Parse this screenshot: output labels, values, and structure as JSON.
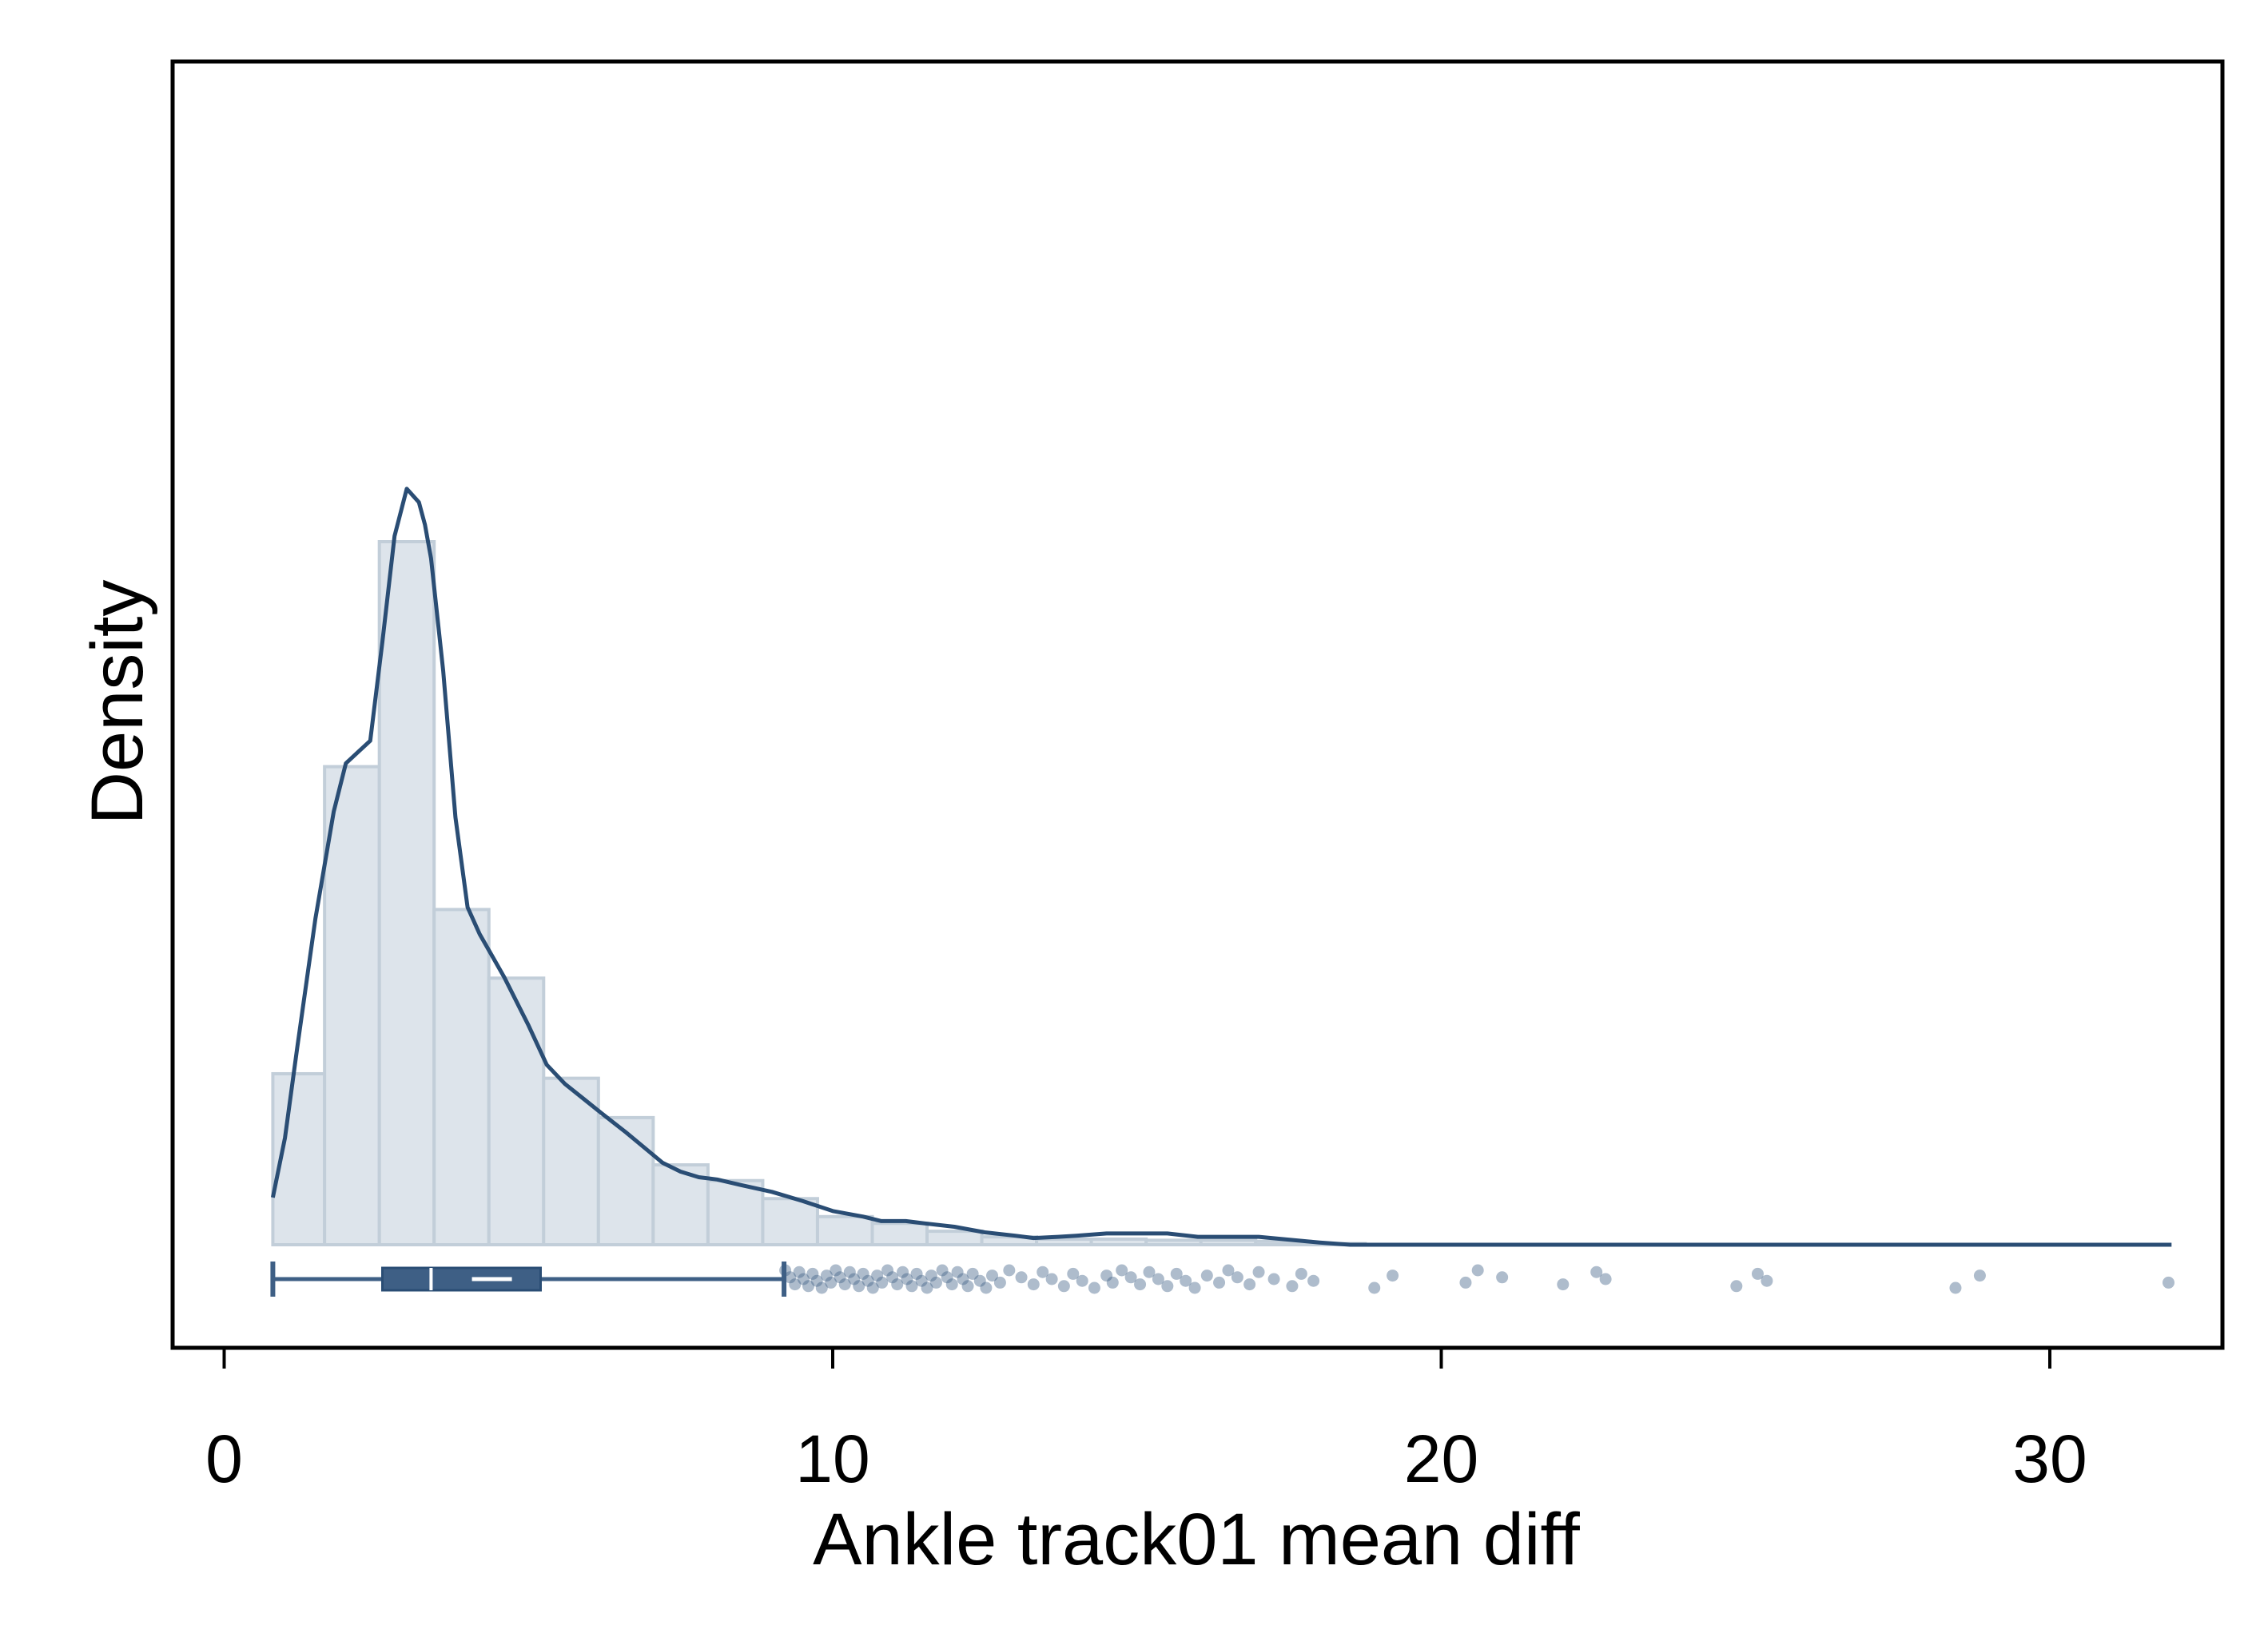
{
  "chart_data": {
    "type": "histogram",
    "xlabel": "Ankle track01 mean diff",
    "ylabel": "Density",
    "xlim": [
      -0.8,
      32.6
    ],
    "x_ticks": [
      0,
      10,
      20,
      30
    ],
    "x_tick_labels": [
      "0",
      "10",
      "20",
      "30"
    ],
    "y_ticks": [],
    "grid": false,
    "legend": "none",
    "histogram": {
      "bins": [
        {
          "x0": 0.8,
          "x1": 1.65,
          "density": 0.152
        },
        {
          "x0": 1.65,
          "x1": 2.55,
          "density": 0.425
        },
        {
          "x0": 2.55,
          "x1": 3.45,
          "density": 0.625
        },
        {
          "x0": 3.45,
          "x1": 4.35,
          "density": 0.298
        },
        {
          "x0": 4.35,
          "x1": 5.25,
          "density": 0.237
        },
        {
          "x0": 5.25,
          "x1": 6.15,
          "density": 0.148
        },
        {
          "x0": 6.15,
          "x1": 7.05,
          "density": 0.113
        },
        {
          "x0": 7.05,
          "x1": 7.95,
          "density": 0.071
        },
        {
          "x0": 7.95,
          "x1": 8.85,
          "density": 0.057
        },
        {
          "x0": 8.85,
          "x1": 9.75,
          "density": 0.041
        },
        {
          "x0": 9.75,
          "x1": 10.65,
          "density": 0.025
        },
        {
          "x0": 10.65,
          "x1": 11.55,
          "density": 0.019
        },
        {
          "x0": 11.55,
          "x1": 12.45,
          "density": 0.012
        },
        {
          "x0": 12.45,
          "x1": 13.35,
          "density": 0.007
        },
        {
          "x0": 13.35,
          "x1": 14.25,
          "density": 0.005
        },
        {
          "x0": 14.25,
          "x1": 15.15,
          "density": 0.005
        },
        {
          "x0": 15.15,
          "x1": 16.05,
          "density": 0.004
        },
        {
          "x0": 16.05,
          "x1": 16.95,
          "density": 0.004
        },
        {
          "x0": 16.95,
          "x1": 17.85,
          "density": 0.003
        },
        {
          "x0": 17.85,
          "x1": 18.75,
          "density": 0.001
        }
      ]
    },
    "kde": {
      "x": [
        0.8,
        1.0,
        1.2,
        1.5,
        1.8,
        2.0,
        2.2,
        2.4,
        2.6,
        2.8,
        3.0,
        3.2,
        3.3,
        3.4,
        3.6,
        3.8,
        4.0,
        4.2,
        4.4,
        4.6,
        5.0,
        5.3,
        5.6,
        5.9,
        6.2,
        6.6,
        7.0,
        7.2,
        7.5,
        7.8,
        8.1,
        8.5,
        9.0,
        9.5,
        10.0,
        10.5,
        10.8,
        11.2,
        11.5,
        12.0,
        12.5,
        13.0,
        13.3,
        13.7,
        14.0,
        14.5,
        15.0,
        15.5,
        16.0,
        17.0,
        18.0,
        18.5,
        19.0,
        20.0,
        21.0,
        22.0,
        23.0,
        24.0,
        25.0,
        26.0,
        28.0,
        29.0,
        30.0,
        31.0,
        32.0
      ],
      "y": [
        0.042,
        0.095,
        0.175,
        0.29,
        0.385,
        0.428,
        0.438,
        0.448,
        0.536,
        0.63,
        0.672,
        0.66,
        0.64,
        0.61,
        0.51,
        0.38,
        0.3,
        0.276,
        0.257,
        0.238,
        0.195,
        0.16,
        0.143,
        0.13,
        0.117,
        0.1,
        0.082,
        0.073,
        0.065,
        0.06,
        0.058,
        0.053,
        0.047,
        0.039,
        0.03,
        0.025,
        0.021,
        0.021,
        0.019,
        0.016,
        0.011,
        0.008,
        0.006,
        0.007,
        0.008,
        0.01,
        0.01,
        0.01,
        0.007,
        0.007,
        0.002,
        0.0,
        0.0,
        0.0,
        0.0,
        0.0,
        0.0,
        0.0,
        0.0,
        0.0,
        0.0,
        0.0,
        0.0,
        0.0,
        0.0
      ],
      "color": "#2a4d74"
    },
    "boxplot": {
      "whisker_low": 0.8,
      "q1": 2.6,
      "median": 4.4,
      "mean": 3.4,
      "q3": 5.2,
      "whisker_high": 9.2,
      "color": "#3e5f85"
    },
    "outliers": [
      9.22,
      9.3,
      9.38,
      9.45,
      9.52,
      9.6,
      9.67,
      9.74,
      9.82,
      9.9,
      9.97,
      10.05,
      10.12,
      10.2,
      10.28,
      10.35,
      10.43,
      10.5,
      10.58,
      10.66,
      10.73,
      10.81,
      10.9,
      10.98,
      11.06,
      11.15,
      11.22,
      11.3,
      11.38,
      11.46,
      11.55,
      11.62,
      11.7,
      11.8,
      11.88,
      11.96,
      12.05,
      12.14,
      12.22,
      12.3,
      12.42,
      12.52,
      12.62,
      12.75,
      12.9,
      13.1,
      13.3,
      13.45,
      13.6,
      13.8,
      13.95,
      14.1,
      14.3,
      14.5,
      14.6,
      14.75,
      14.9,
      15.05,
      15.2,
      15.35,
      15.5,
      15.65,
      15.8,
      15.95,
      16.15,
      16.35,
      16.5,
      16.65,
      16.85,
      17.0,
      17.25,
      17.55,
      17.7,
      17.9,
      18.9,
      19.2,
      20.4,
      20.6,
      21.0,
      22.0,
      22.55,
      22.7,
      24.85,
      25.2,
      25.35,
      28.45,
      28.85,
      31.95
    ],
    "colors": {
      "bar_fill": "#dde4eb",
      "bar_edge": "#c2ced9",
      "line": "#2a4d74",
      "box": "#3e5f85",
      "point": "#3e5f85",
      "plot_bg": "#dde4eb"
    }
  }
}
